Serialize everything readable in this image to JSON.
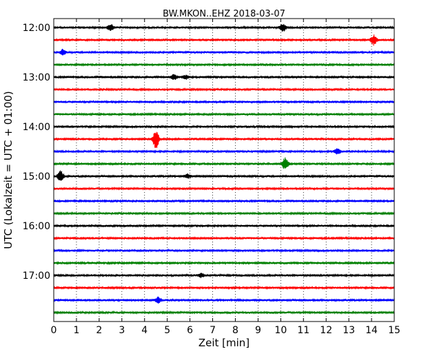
{
  "chart_data": {
    "type": "line",
    "title": "BW.MKON..EHZ 2018-03-07",
    "xlabel": "Zeit  [min]",
    "ylabel": "UTC (Lokalzeit = UTC + 01:00)",
    "xlim": [
      0,
      15
    ],
    "x_ticks": [
      "0",
      "1",
      "2",
      "3",
      "4",
      "5",
      "6",
      "7",
      "8",
      "9",
      "10",
      "11",
      "12",
      "13",
      "14",
      "15"
    ],
    "y_ticks": [
      "12:00",
      "13:00",
      "14:00",
      "15:00",
      "16:00",
      "17:00"
    ],
    "grid": "vertical dotted at each minute",
    "trace_colors": [
      "#000000",
      "#ff0000",
      "#0000ff",
      "#008000"
    ],
    "traces": [
      {
        "start": "12:00",
        "color": "#000000",
        "events": [
          {
            "t": 2.5,
            "amp": 5
          },
          {
            "t": 10.1,
            "amp": 6
          }
        ]
      },
      {
        "start": "12:15",
        "color": "#ff0000",
        "events": [
          {
            "t": 14.1,
            "amp": 7
          }
        ]
      },
      {
        "start": "12:30",
        "color": "#0000ff",
        "events": [
          {
            "t": 0.4,
            "amp": 4
          }
        ]
      },
      {
        "start": "12:45",
        "color": "#008000",
        "events": []
      },
      {
        "start": "13:00",
        "color": "#000000",
        "events": [
          {
            "t": 5.3,
            "amp": 4
          },
          {
            "t": 5.8,
            "amp": 3
          }
        ]
      },
      {
        "start": "13:15",
        "color": "#ff0000",
        "events": []
      },
      {
        "start": "13:30",
        "color": "#0000ff",
        "events": []
      },
      {
        "start": "13:45",
        "color": "#008000",
        "events": []
      },
      {
        "start": "14:00",
        "color": "#000000",
        "events": []
      },
      {
        "start": "14:15",
        "color": "#ff0000",
        "events": [
          {
            "t": 4.5,
            "amp": 14
          }
        ]
      },
      {
        "start": "14:30",
        "color": "#0000ff",
        "events": [
          {
            "t": 12.5,
            "amp": 4
          }
        ]
      },
      {
        "start": "14:45",
        "color": "#008000",
        "events": [
          {
            "t": 10.2,
            "amp": 9
          }
        ]
      },
      {
        "start": "15:00",
        "color": "#000000",
        "events": [
          {
            "t": 0.3,
            "amp": 8
          },
          {
            "t": 5.9,
            "amp": 3
          }
        ]
      },
      {
        "start": "15:15",
        "color": "#ff0000",
        "events": []
      },
      {
        "start": "15:30",
        "color": "#0000ff",
        "events": []
      },
      {
        "start": "15:45",
        "color": "#008000",
        "events": []
      },
      {
        "start": "16:00",
        "color": "#000000",
        "events": []
      },
      {
        "start": "16:15",
        "color": "#ff0000",
        "events": []
      },
      {
        "start": "16:30",
        "color": "#0000ff",
        "events": []
      },
      {
        "start": "16:45",
        "color": "#008000",
        "events": []
      },
      {
        "start": "17:00",
        "color": "#000000",
        "events": [
          {
            "t": 6.5,
            "amp": 3
          }
        ]
      },
      {
        "start": "17:15",
        "color": "#ff0000",
        "events": []
      },
      {
        "start": "17:30",
        "color": "#0000ff",
        "events": [
          {
            "t": 4.6,
            "amp": 4
          }
        ]
      },
      {
        "start": "17:45",
        "color": "#008000",
        "events": []
      }
    ]
  }
}
